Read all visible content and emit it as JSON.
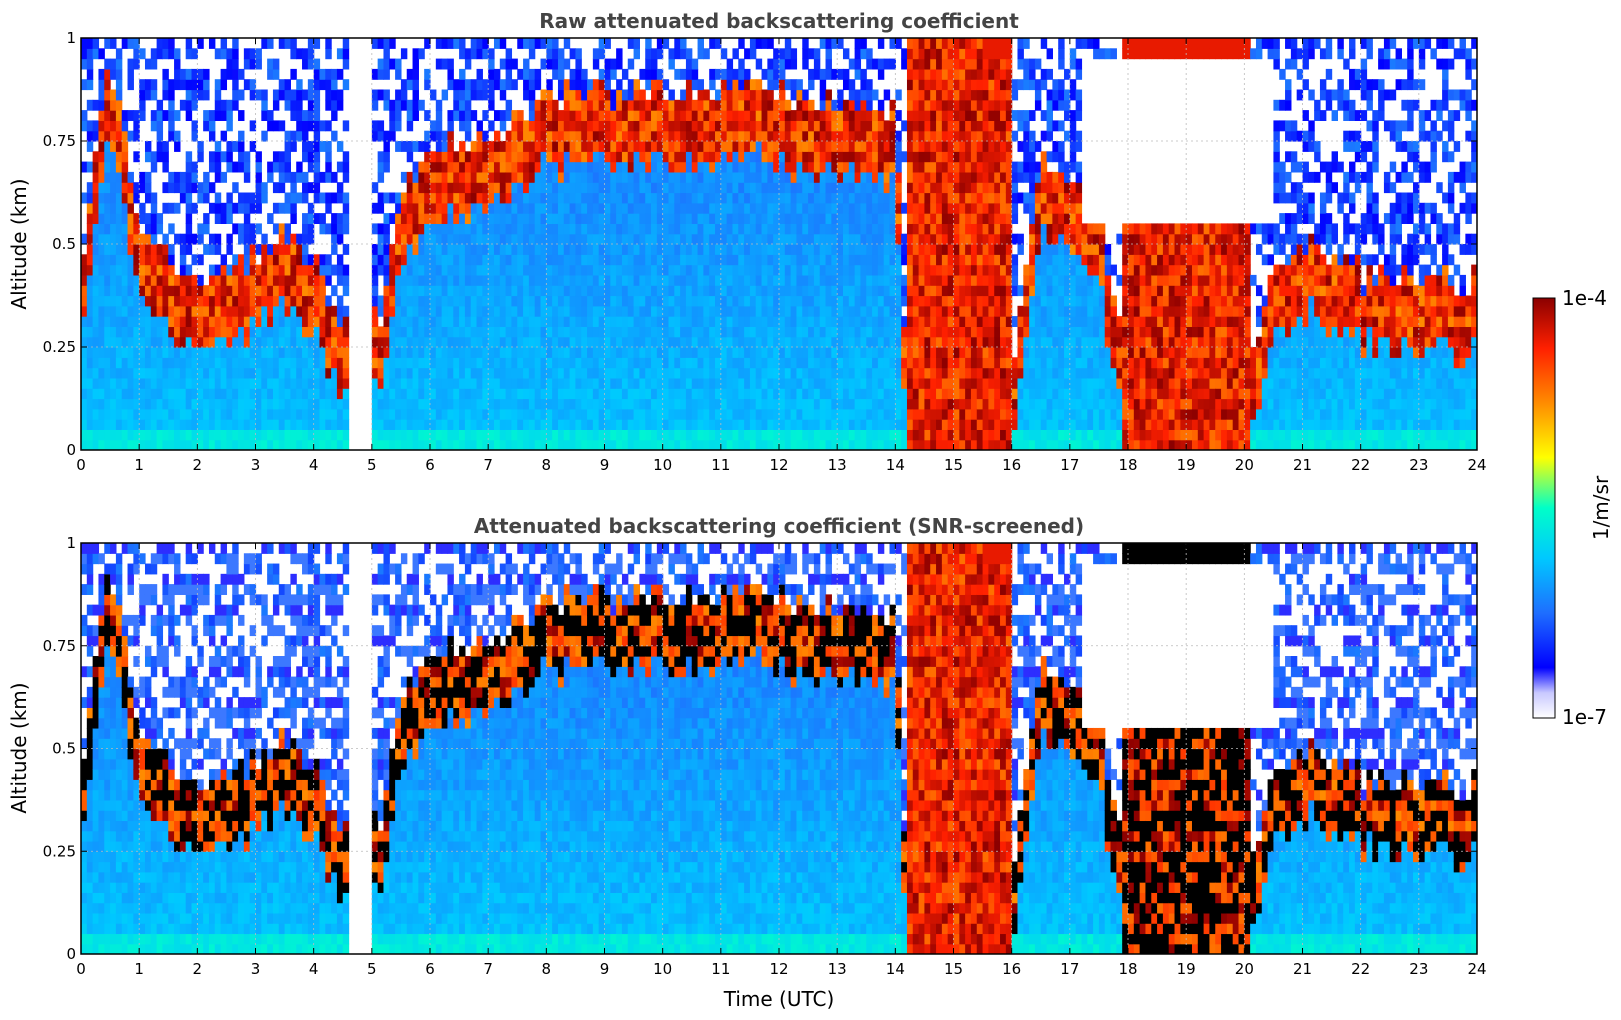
{
  "chart_data": [
    {
      "type": "heatmap",
      "title": "Raw attenuated backscattering coefficient",
      "xlabel": "",
      "ylabel": "Altitude (km)",
      "xlim": [
        0,
        24
      ],
      "ylim": [
        0,
        1
      ],
      "xticks": [
        "0",
        "1",
        "2",
        "3",
        "4",
        "5",
        "6",
        "7",
        "8",
        "9",
        "10",
        "11",
        "12",
        "13",
        "14",
        "15",
        "16",
        "17",
        "18",
        "19",
        "20",
        "21",
        "22",
        "23",
        "24"
      ],
      "yticks": [
        "0",
        "0.25",
        "0.5",
        "0.75",
        "1"
      ],
      "grid": true,
      "x_unit": "hour (UTC)",
      "y_unit": "km",
      "no_data_gap_hours": [
        4.62,
        5.05
      ],
      "cloud_base_km": [
        {
          "hour": 0.0,
          "value": 0.3
        },
        {
          "hour": 0.5,
          "value": 0.85
        },
        {
          "hour": 1.0,
          "value": 0.4
        },
        {
          "hour": 1.5,
          "value": 0.35
        },
        {
          "hour": 2.0,
          "value": 0.3
        },
        {
          "hour": 2.5,
          "value": 0.3
        },
        {
          "hour": 3.0,
          "value": 0.35
        },
        {
          "hour": 3.5,
          "value": 0.4
        },
        {
          "hour": 4.0,
          "value": 0.35
        },
        {
          "hour": 4.5,
          "value": 0.18
        },
        {
          "hour": 5.2,
          "value": 0.22
        },
        {
          "hour": 5.5,
          "value": 0.5
        },
        {
          "hour": 6.0,
          "value": 0.6
        },
        {
          "hour": 7.0,
          "value": 0.65
        },
        {
          "hour": 8.0,
          "value": 0.75
        },
        {
          "hour": 10.0,
          "value": 0.75
        },
        {
          "hour": 12.0,
          "value": 0.75
        },
        {
          "hour": 14.0,
          "value": 0.7
        },
        {
          "hour": 14.2,
          "value": 0.02
        },
        {
          "hour": 16.0,
          "value": 0.02
        },
        {
          "hour": 16.5,
          "value": 0.6
        },
        {
          "hour": 17.0,
          "value": 0.55
        },
        {
          "hour": 17.5,
          "value": 0.45
        },
        {
          "hour": 18.0,
          "value": 0.05
        },
        {
          "hour": 19.0,
          "value": 0.05
        },
        {
          "hour": 20.0,
          "value": 0.1
        },
        {
          "hour": 20.5,
          "value": 0.3
        },
        {
          "hour": 21.0,
          "value": 0.4
        },
        {
          "hour": 22.0,
          "value": 0.3
        },
        {
          "hour": 23.0,
          "value": 0.3
        },
        {
          "hour": 24.0,
          "value": 0.3
        }
      ],
      "colorbar": {
        "label": "1/m/sr",
        "min": "1e-7",
        "max": "1e-4",
        "scale": "log"
      }
    },
    {
      "type": "heatmap",
      "title": "Attenuated backscattering coefficient (SNR-screened)",
      "xlabel": "Time (UTC)",
      "ylabel": "Altitude (km)",
      "xlim": [
        0,
        24
      ],
      "ylim": [
        0,
        1
      ],
      "xticks": [
        "0",
        "1",
        "2",
        "3",
        "4",
        "5",
        "6",
        "7",
        "8",
        "9",
        "10",
        "11",
        "12",
        "13",
        "14",
        "15",
        "16",
        "17",
        "18",
        "19",
        "20",
        "21",
        "22",
        "23",
        "24"
      ],
      "yticks": [
        "0",
        "0.25",
        "0.5",
        "0.75",
        "1"
      ],
      "grid": true,
      "x_unit": "hour (UTC)",
      "y_unit": "km",
      "no_data_gap_hours": [
        4.62,
        5.05
      ],
      "screened_ranges_hours": [
        [
          0.35,
          1.0
        ],
        [
          1.8,
          2.3
        ],
        [
          2.9,
          3.2
        ],
        [
          17.5,
          20.5
        ]
      ],
      "colorbar": {
        "label": "1/m/sr",
        "min": "1e-7",
        "max": "1e-4",
        "scale": "log"
      }
    }
  ],
  "colormap": [
    "#ffffff",
    "#0000ff",
    "#1e6eff",
    "#00c8ff",
    "#00ffc8",
    "#ffff00",
    "#ff8c00",
    "#ff2000",
    "#8b0000"
  ],
  "colorbar": {
    "max_label": "1e-4",
    "min_label": "1e-7",
    "label": "1/m/sr"
  }
}
